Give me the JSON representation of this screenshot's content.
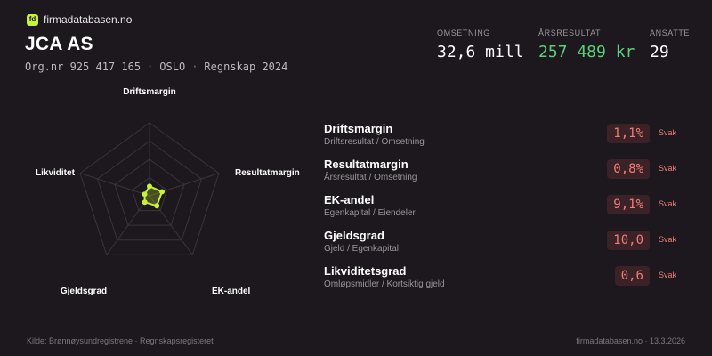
{
  "brand": {
    "logo_text": "fd",
    "name": "firmadatabasen.no"
  },
  "company": {
    "name": "JCA AS",
    "org_nr": "Org.nr 925 417 165",
    "city": "OSLO",
    "period": "Regnskap 2024"
  },
  "kpis": [
    {
      "label": "OMSETNING",
      "value": "32,6 mill"
    },
    {
      "label": "ÅRSRESULTAT",
      "value": "257 489 kr",
      "color": "#5ad07a"
    },
    {
      "label": "ANSATTE",
      "value": "29"
    }
  ],
  "radar": {
    "axes": [
      "Driftsmargin",
      "Resultatmargin",
      "EK-andel",
      "Gjeldsgrad",
      "Likviditet"
    ],
    "levels": 4,
    "values": [
      0.13,
      0.18,
      0.17,
      0.11,
      0.07
    ],
    "color": "#c6f432"
  },
  "metrics": [
    {
      "name": "Driftsmargin",
      "formula": "Driftsresultat / Omsetning",
      "value": "1,1%",
      "status": "Svak"
    },
    {
      "name": "Resultatmargin",
      "formula": "Årsresultat / Omsetning",
      "value": "0,8%",
      "status": "Svak"
    },
    {
      "name": "EK-andel",
      "formula": "Egenkapital / Eiendeler",
      "value": "9,1%",
      "status": "Svak"
    },
    {
      "name": "Gjeldsgrad",
      "formula": "Gjeld / Egenkapital",
      "value": "10,0",
      "status": "Svak"
    },
    {
      "name": "Likviditetsgrad",
      "formula": "Omløpsmidler / Kortsiktig gjeld",
      "value": "0,6",
      "status": "Svak"
    }
  ],
  "footer": {
    "source": "Kilde: Brønnøysundregistrene · Regnskapsregisteret",
    "site_date": "firmadatabasen.no · 13.3.2026"
  }
}
